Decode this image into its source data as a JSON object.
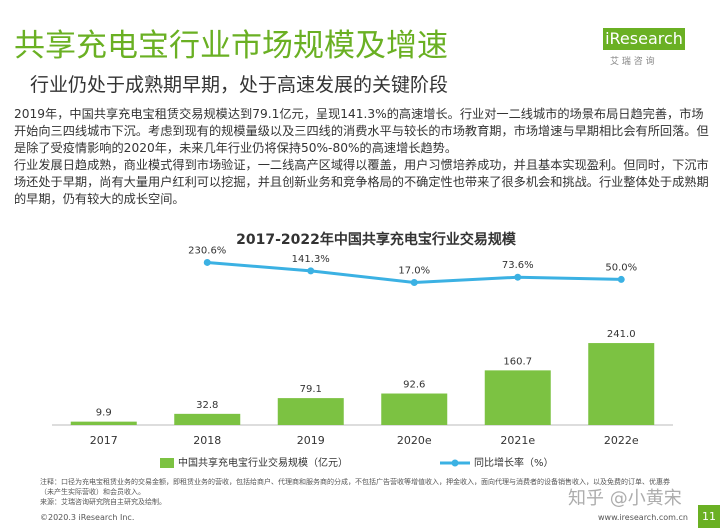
{
  "header": {
    "title": "共享充电宝行业市场规模及增速",
    "subtitle": "行业仍处于成熟期早期，处于高速发展的关键阶段",
    "logo": "iResearch",
    "logo_sub": "艾 瑞 咨 询"
  },
  "body": [
    "2019年，中国共享充电宝租赁交易规模达到79.1亿元，呈现141.3%的高速增长。行业对一二线城市的场景布局日趋完善，市场开始向三四线城市下沉。考虑到现有的规模量级以及三四线的消费水平与较长的市场教育期，市场增速与早期相比会有所回落。但是除了受疫情影响的2020年，未来几年行业仍将保持50%-80%的高速增长趋势。",
    "行业发展日趋成熟，商业模式得到市场验证，一二线高产区域得以覆盖，用户习惯培养成功，并且基本实现盈利。但同时，下沉市场还处于早期，尚有大量用户红利可以挖掘，并且创新业务和竞争格局的不确定性也带来了很多机会和挑战。行业整体处于成熟期的早期，仍有较大的成长空间。"
  ],
  "chart_data": {
    "type": "bar",
    "title": "2017-2022年中国共享充电宝行业交易规模",
    "categories": [
      "2017",
      "2018",
      "2019",
      "2020e",
      "2021e",
      "2022e"
    ],
    "series": [
      {
        "name": "中国共享充电宝行业交易规模（亿元）",
        "type": "bar",
        "color": "#7cc242",
        "values": [
          9.9,
          32.8,
          79.1,
          92.6,
          160.7,
          241
        ],
        "value_labels": [
          "9.9",
          "32.8",
          "79.1",
          "92.6",
          "160.7",
          "241.0"
        ]
      },
      {
        "name": "同比增长率（%）",
        "type": "line",
        "axis": "y2",
        "color": "#3bb1e3",
        "values": [
          null,
          230.6,
          141.3,
          17,
          73.6,
          50
        ],
        "value_labels": [
          null,
          "230.6%",
          "141.3%",
          "17.0%",
          "73.6%",
          "50.0%"
        ]
      }
    ],
    "ylim": [
      0,
      500
    ],
    "y2lim": [
      -1500,
      310
    ],
    "legend": "bottom"
  },
  "notes": [
    "注释：口径为充电宝租赁业务的交易金额，即租赁业务的营收，包括给商户、代理商和服务商的分成，不包括广告营收等增值收入，押金收入，面向代理与消费者的设备销售收入，以及免费的订单、优惠券（未产生实际营收）和会员收入。",
    "来源：艾瑞咨询研究院自主研究及绘制。"
  ],
  "footer": {
    "copyright": "©2020.3 iResearch Inc.",
    "url": "www.iresearch.com.cn",
    "page": "11",
    "watermark": "知乎 @小黄宋"
  }
}
